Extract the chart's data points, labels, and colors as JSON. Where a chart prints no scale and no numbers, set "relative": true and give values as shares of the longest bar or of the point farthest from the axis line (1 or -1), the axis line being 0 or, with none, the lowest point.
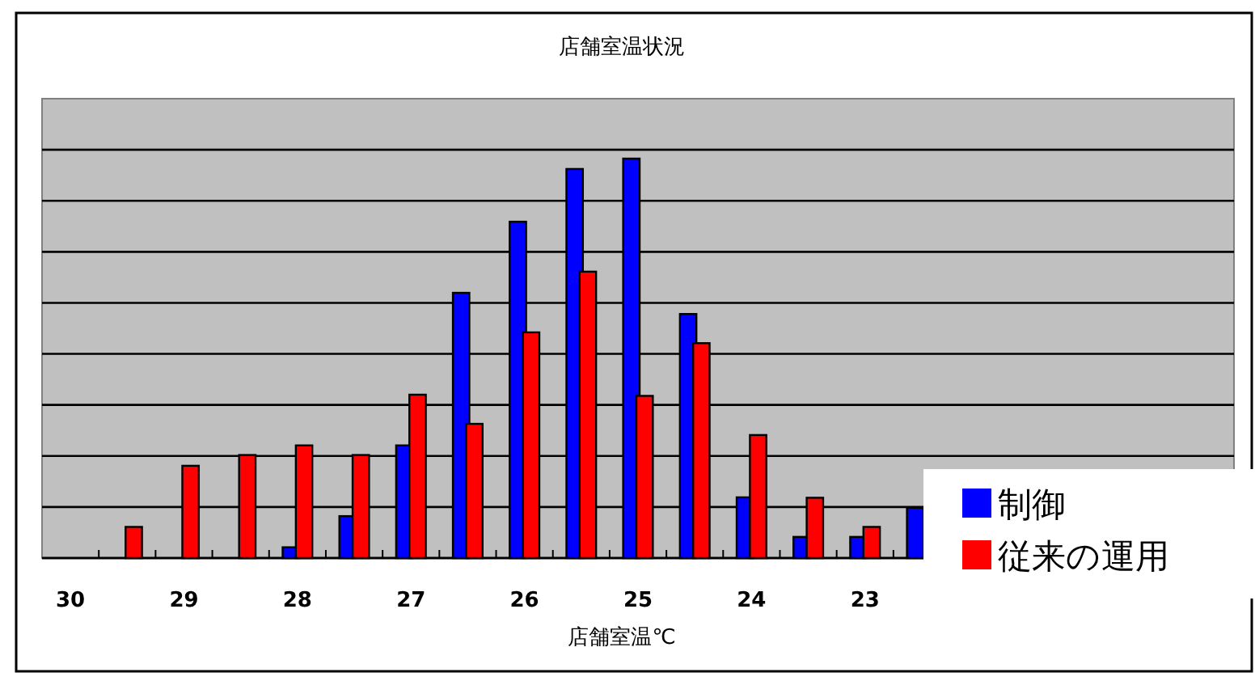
{
  "chart_data": {
    "type": "bar",
    "title": "店舗室温状況",
    "xlabel": "店舗室温℃",
    "relative": true,
    "grid": "y",
    "legend": "bottom right",
    "categories": [
      "30",
      null,
      "29",
      null,
      "28",
      null,
      "27",
      null,
      "26",
      null,
      "25",
      null,
      "24",
      null,
      "23",
      null,
      null,
      null,
      null,
      null,
      null
    ],
    "series": [
      {
        "name": "制御",
        "color": "#0000ff",
        "values": [
          null,
          null,
          null,
          null,
          0.027,
          0.105,
          0.282,
          0.664,
          0.842,
          0.974,
          1,
          0.611,
          0.152,
          0.053,
          0.053,
          0.126,
          null,
          null,
          null,
          null,
          null
        ]
      },
      {
        "name": "従来の運用",
        "color": "#ff0000",
        "values": [
          null,
          0.078,
          0.231,
          0.258,
          0.282,
          0.258,
          0.409,
          0.336,
          0.565,
          0.717,
          0.406,
          0.538,
          0.308,
          0.151,
          0.078,
          null,
          null,
          null,
          null,
          null,
          null
        ]
      }
    ]
  }
}
